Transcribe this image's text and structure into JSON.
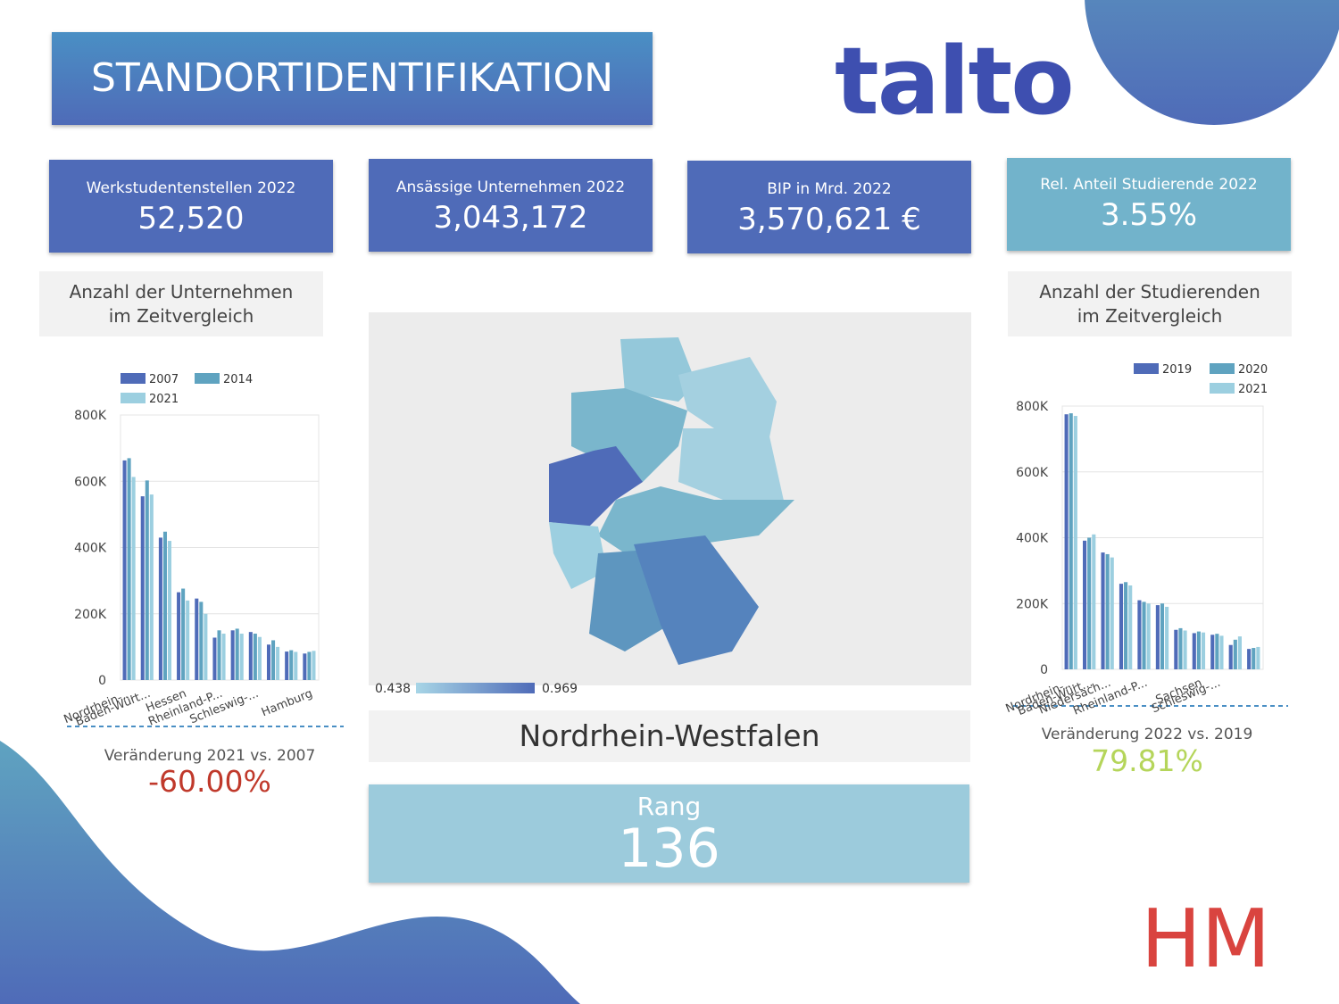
{
  "header": {
    "title": "STANDORTIDENTIFIKATION",
    "logo": "talto",
    "logo2": "HM"
  },
  "kpis": [
    {
      "label": "Werkstudentenstellen 2022",
      "value": "52,520"
    },
    {
      "label": "Ansässige Unternehmen 2022",
      "value": "3,043,172"
    },
    {
      "label": "BIP in Mrd. 2022",
      "value": "3,570,621 €"
    },
    {
      "label": "Rel. Anteil Studierende 2022",
      "value": "3.55%"
    }
  ],
  "left_panel": {
    "title": "Anzahl der Unternehmen im Zeitvergleich",
    "change_label": "Veränderung 2021 vs. 2007",
    "change": "-60.00%"
  },
  "right_panel": {
    "title": "Anzahl der Studierenden im Zeitvergleich",
    "change_label": "Veränderung 2022 vs. 2019",
    "change": "79.81%"
  },
  "map": {
    "legend_min": 0.438,
    "legend_max": 0.969
  },
  "region": "Nordrhein-Westfalen",
  "rank": {
    "label": "Rang",
    "value": 136
  },
  "chart_data": [
    {
      "type": "bar",
      "categories": [
        "Nordrhein-...",
        "Baden-Würt...",
        null,
        "Hessen",
        null,
        "Rheinland-P...",
        null,
        "Schleswig-...",
        null,
        null,
        "Hamburg"
      ],
      "series": [
        {
          "name": "2007",
          "color": "#4f6bb8",
          "values": [
            662884,
            554608,
            429858,
            265000,
            246000,
            128000,
            150000,
            145000,
            107000,
            86000,
            80000
          ]
        },
        {
          "name": "2014",
          "color": "#5fa3c0",
          "values": [
            669608,
            602430,
            447800,
            276000,
            236000,
            150000,
            155000,
            140000,
            120000,
            90000,
            85000
          ]
        },
        {
          "name": "2021",
          "color": "#9ccfe0",
          "values": [
            613000,
            560000,
            420000,
            240000,
            200000,
            140000,
            140000,
            130000,
            100000,
            85000,
            88000
          ]
        }
      ],
      "ylim": [
        0,
        800000
      ],
      "yticks": [
        0,
        {
          "value": 200000,
          "label": "200K"
        },
        {
          "value": 400000,
          "label": "400K"
        },
        {
          "value": 600000,
          "label": "600K"
        },
        {
          "value": 800000,
          "label": "800K"
        }
      ],
      "grid": true,
      "legend": "top"
    },
    {
      "type": "bar",
      "categories": [
        "Nordrhein-...",
        "Baden-Würt...",
        "Niedersach...",
        null,
        "Rheinland-P...",
        null,
        null,
        "Sachsen",
        "Schleswig-...",
        null,
        null
      ],
      "series": [
        {
          "name": "2019",
          "color": "#4f6bb8",
          "values": [
            775000,
            391000,
            355000,
            260000,
            210000,
            195000,
            120000,
            110000,
            105000,
            74000,
            62000
          ]
        },
        {
          "name": "2020",
          "color": "#5fa3c0",
          "values": [
            778000,
            400000,
            350000,
            265000,
            205000,
            200000,
            125000,
            115000,
            108000,
            90000,
            65000
          ]
        },
        {
          "name": "2021",
          "color": "#9ccfe0",
          "values": [
            770000,
            410000,
            340000,
            255000,
            200000,
            190000,
            118000,
            112000,
            102000,
            100000,
            68000
          ]
        }
      ],
      "ylim": [
        0,
        800000
      ],
      "yticks": [
        0,
        {
          "value": 200000,
          "label": "200K"
        },
        {
          "value": 400000,
          "label": "400K"
        },
        {
          "value": 600000,
          "label": "600K"
        },
        {
          "value": 800000,
          "label": "800K"
        }
      ],
      "grid": true,
      "legend": "top-right"
    }
  ]
}
